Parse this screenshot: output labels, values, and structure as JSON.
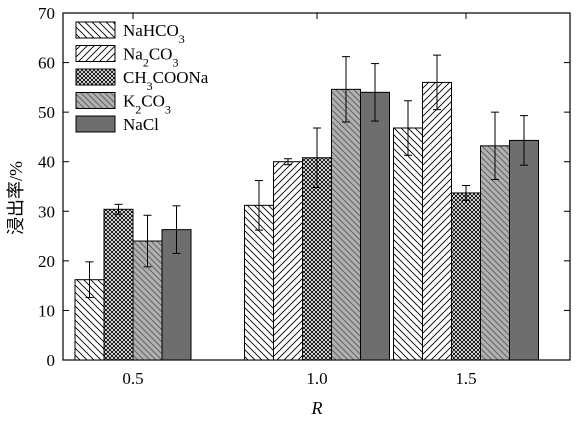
{
  "chart_data": {
    "type": "bar",
    "categories": [
      "0.5",
      "1.0",
      "1.5"
    ],
    "xlabel": "R",
    "ylabel": "浸出率/%",
    "ylim": [
      0,
      70
    ],
    "yticks": [
      0,
      10,
      20,
      30,
      40,
      50,
      60,
      70
    ],
    "grid": false,
    "legend_position": "top-left",
    "series": [
      {
        "name": "NaHCO",
        "sub": "3",
        "tail": "",
        "pattern": "hatch-back",
        "values": [
          16.2,
          31.2,
          46.8
        ],
        "errors": [
          3.6,
          5.0,
          5.5
        ]
      },
      {
        "name": "Na",
        "sub": "2",
        "tail": "CO",
        "sub2": "3",
        "pattern": "hatch-fwd",
        "values": [
          null,
          40.0,
          56.0
        ],
        "errors": [
          null,
          0.6,
          5.5
        ]
      },
      {
        "name": "CH",
        "sub": "3",
        "tail": "COONa",
        "pattern": "crosshatch",
        "values": [
          30.4,
          40.8,
          33.7
        ],
        "errors": [
          1.0,
          6.0,
          1.5
        ]
      },
      {
        "name": "K",
        "sub": "2",
        "tail": "CO",
        "sub2": "3",
        "pattern": "gray-hatch",
        "values": [
          24.0,
          54.6,
          43.2
        ],
        "errors": [
          5.2,
          6.6,
          6.8
        ]
      },
      {
        "name": "NaCl",
        "sub": "",
        "tail": "",
        "pattern": "dark",
        "values": [
          26.3,
          54.0,
          44.3
        ],
        "errors": [
          4.8,
          5.8,
          5.0
        ]
      }
    ],
    "colors": {
      "dark": "#6e6e6e",
      "gray": "#b0b0b0",
      "line": "#000000",
      "crosshatch_bg": "#ffffff"
    }
  }
}
